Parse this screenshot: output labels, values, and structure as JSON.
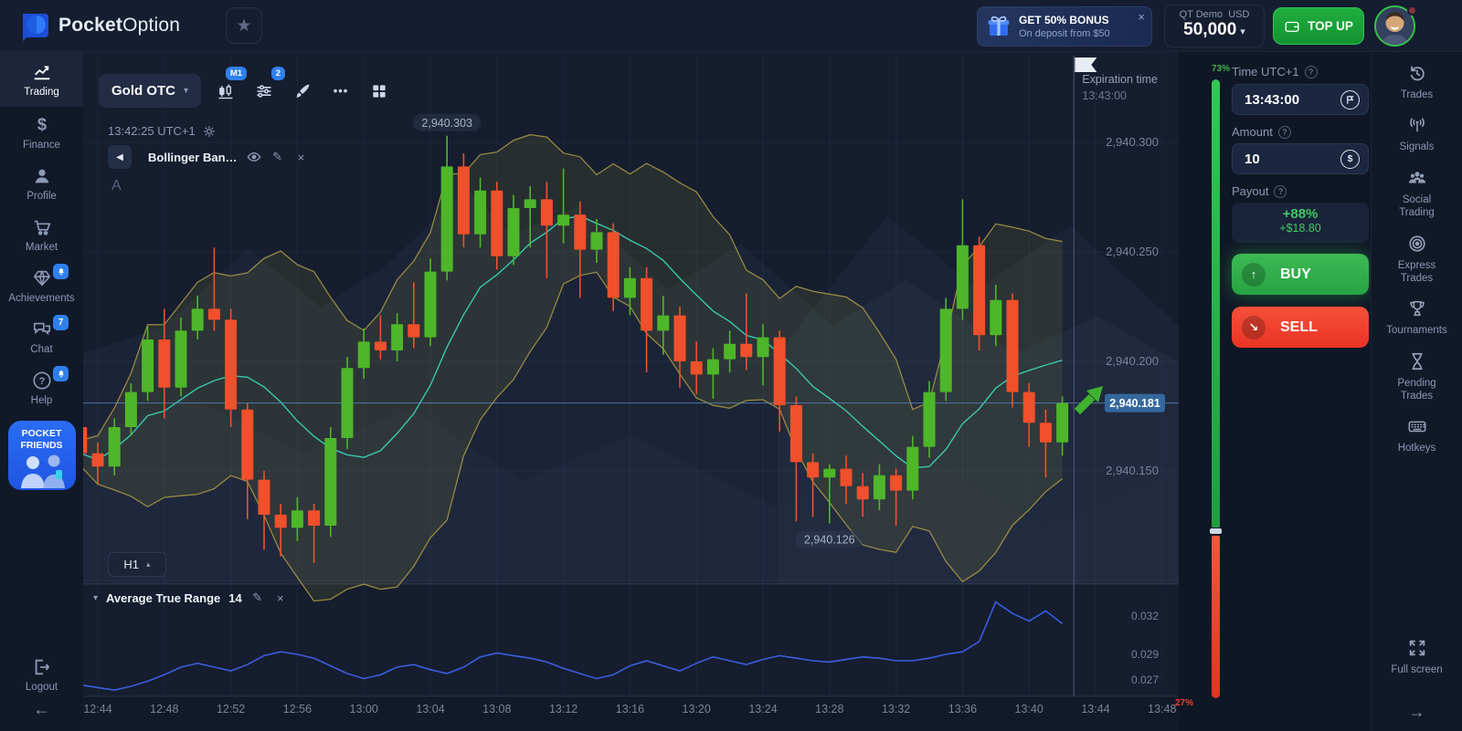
{
  "header": {
    "brand_bold": "Pocket",
    "brand_light": "Option",
    "star_glyph": "★",
    "bonus": {
      "title": "GET 50% BONUS",
      "subtitle": "On deposit from $50",
      "close": "×"
    },
    "account": {
      "type": "QT Demo",
      "currency": "USD",
      "balance": "50,000",
      "caret": "▾"
    },
    "topup_label": "TOP UP"
  },
  "sidebar": {
    "items": [
      {
        "label": "Trading",
        "icon": "chart",
        "active": true
      },
      {
        "label": "Finance",
        "icon": "dollar"
      },
      {
        "label": "Profile",
        "icon": "user"
      },
      {
        "label": "Market",
        "icon": "cart"
      },
      {
        "label": "Achievements",
        "icon": "gem",
        "badge": "bell"
      },
      {
        "label": "Chat",
        "icon": "chat",
        "badge": "7"
      },
      {
        "label": "Help",
        "icon": "question",
        "badge": "bell"
      }
    ],
    "banner": {
      "line1": "POCKET",
      "line2": "FRIENDS"
    },
    "logout_label": "Logout",
    "back_glyph": "←"
  },
  "toolbar": {
    "symbol": "Gold OTC",
    "symbol_caret": "▾",
    "timeframe_badge": "M1",
    "indicators_badge": "2",
    "dots_glyph": "•••",
    "clock": "13:42:25 UTC+1",
    "chip_back_glyph": "◀",
    "indicator_chip": "Bollinger Ban…",
    "pencil_glyph": "✎",
    "close_glyph": "×",
    "annotation_letter": "A",
    "interval_button": "H1",
    "caret_up": "▴",
    "caret_down": "▾"
  },
  "atr_header": {
    "caret": "▾",
    "title": "Average True Range",
    "period": "14",
    "pencil_glyph": "✎",
    "close_glyph": "×"
  },
  "sentiment": {
    "up": "73%",
    "down": "27%"
  },
  "trade_panel": {
    "help_glyph": "?",
    "time_label": "Time UTC+1",
    "time_value": "13:43:00",
    "amount_label": "Amount",
    "amount_value": "10",
    "amount_icon_glyph": "$",
    "payout_label": "Payout",
    "payout_percent": "+88%",
    "payout_amount": "+$18.80",
    "buy_label": "BUY",
    "buy_arrow": "↑",
    "sell_label": "SELL",
    "sell_arrow": "↘"
  },
  "right_rail": {
    "items": [
      {
        "label": "Trades",
        "icon": "trades"
      },
      {
        "label": "Signals",
        "icon": "signals"
      },
      {
        "label": "Social Trading",
        "icon": "social"
      },
      {
        "label": "Express Trades",
        "icon": "express"
      },
      {
        "label": "Tournaments",
        "icon": "tournaments"
      },
      {
        "label": "Pending Trades",
        "icon": "pending"
      },
      {
        "label": "Hotkeys",
        "icon": "hotkeys"
      }
    ],
    "fullscreen_label": "Full screen",
    "arrow_glyph": "→"
  },
  "chart_data": [
    {
      "type": "candlestick",
      "symbol": "Gold OTC",
      "timeframe": "M1",
      "overlay": "Bollinger Bands",
      "y_ticks": [
        {
          "label": "2,940.300",
          "price": 2940.3
        },
        {
          "label": "2,940.250",
          "price": 2940.25
        },
        {
          "label": "2,940.200",
          "price": 2940.2
        },
        {
          "label": "2,940.150",
          "price": 2940.15
        }
      ],
      "x_ticks": [
        "12:44",
        "12:48",
        "12:52",
        "12:56",
        "13:00",
        "13:04",
        "13:08",
        "13:12",
        "13:16",
        "13:20",
        "13:24",
        "13:28",
        "13:32",
        "13:36",
        "13:40",
        "13:44",
        "13:48"
      ],
      "annotations": {
        "high": {
          "label": "2,940.303",
          "index": 22
        },
        "low": {
          "label": "2,940.126",
          "index": 45
        },
        "current": {
          "label": "2,940.181",
          "price": 2940.181
        },
        "expiration": {
          "title": "Expiration time",
          "time": "13:43:00",
          "minute": 59.7
        }
      },
      "colors": {
        "up": "#4eb629",
        "down": "#f0502b",
        "band": "#a89b45",
        "mid": "#38d9b9",
        "price_line": "#5d8cc4",
        "badge": "#34679d",
        "arrow": "#3fb12f"
      },
      "candles": [
        [
          "12:43",
          2940.17,
          2940.176,
          2940.15,
          2940.158
        ],
        [
          "12:44",
          2940.158,
          2940.163,
          2940.144,
          2940.152
        ],
        [
          "12:45",
          2940.152,
          2940.174,
          2940.148,
          2940.17
        ],
        [
          "12:46",
          2940.17,
          2940.19,
          2940.166,
          2940.186
        ],
        [
          "12:47",
          2940.186,
          2940.216,
          2940.182,
          2940.21
        ],
        [
          "12:48",
          2940.21,
          2940.224,
          2940.174,
          2940.188
        ],
        [
          "12:49",
          2940.188,
          2940.22,
          2940.184,
          2940.214
        ],
        [
          "12:50",
          2940.214,
          2940.23,
          2940.21,
          2940.224
        ],
        [
          "12:51",
          2940.224,
          2940.252,
          2940.214,
          2940.219
        ],
        [
          "12:52",
          2940.219,
          2940.224,
          2940.17,
          2940.178
        ],
        [
          "12:53",
          2940.178,
          2940.181,
          2940.128,
          2940.146
        ],
        [
          "12:54",
          2940.146,
          2940.15,
          2940.114,
          2940.13
        ],
        [
          "12:55",
          2940.13,
          2940.135,
          2940.111,
          2940.124
        ],
        [
          "12:56",
          2940.124,
          2940.138,
          2940.118,
          2940.132
        ],
        [
          "12:57",
          2940.132,
          2940.135,
          2940.108,
          2940.125
        ],
        [
          "12:58",
          2940.125,
          2940.17,
          2940.12,
          2940.165
        ],
        [
          "12:59",
          2940.165,
          2940.202,
          2940.16,
          2940.197
        ],
        [
          "13:00",
          2940.197,
          2940.215,
          2940.192,
          2940.209
        ],
        [
          "13:01",
          2940.209,
          2940.221,
          2940.201,
          2940.205
        ],
        [
          "13:02",
          2940.205,
          2940.222,
          2940.2,
          2940.217
        ],
        [
          "13:03",
          2940.217,
          2940.236,
          2940.206,
          2940.211
        ],
        [
          "13:04",
          2940.211,
          2940.247,
          2940.207,
          2940.241
        ],
        [
          "13:05",
          2940.241,
          2940.303,
          2940.237,
          2940.289
        ],
        [
          "13:06",
          2940.289,
          2940.295,
          2940.252,
          2940.258
        ],
        [
          "13:07",
          2940.258,
          2940.284,
          2940.252,
          2940.278
        ],
        [
          "13:08",
          2940.278,
          2940.282,
          2940.242,
          2940.248
        ],
        [
          "13:09",
          2940.248,
          2940.276,
          2940.244,
          2940.27
        ],
        [
          "13:10",
          2940.27,
          2940.28,
          2940.252,
          2940.274
        ],
        [
          "13:11",
          2940.274,
          2940.282,
          2940.238,
          2940.262
        ],
        [
          "13:12",
          2940.262,
          2940.288,
          2940.254,
          2940.267
        ],
        [
          "13:13",
          2940.267,
          2940.273,
          2940.229,
          2940.251
        ],
        [
          "13:14",
          2940.251,
          2940.265,
          2940.245,
          2940.259
        ],
        [
          "13:15",
          2940.259,
          2940.263,
          2940.223,
          2940.229
        ],
        [
          "13:16",
          2940.229,
          2940.243,
          2940.221,
          2940.238
        ],
        [
          "13:17",
          2940.238,
          2940.243,
          2940.195,
          2940.214
        ],
        [
          "13:18",
          2940.214,
          2940.23,
          2940.203,
          2940.221
        ],
        [
          "13:19",
          2940.221,
          2940.225,
          2940.188,
          2940.2
        ],
        [
          "13:20",
          2940.2,
          2940.209,
          2940.185,
          2940.194
        ],
        [
          "13:21",
          2940.194,
          2940.206,
          2940.183,
          2940.201
        ],
        [
          "13:22",
          2940.201,
          2940.214,
          2940.195,
          2940.208
        ],
        [
          "13:23",
          2940.208,
          2940.231,
          2940.196,
          2940.202
        ],
        [
          "13:24",
          2940.202,
          2940.217,
          2940.189,
          2940.211
        ],
        [
          "13:25",
          2940.211,
          2940.214,
          2940.168,
          2940.18
        ],
        [
          "13:26",
          2940.18,
          2940.184,
          2940.127,
          2940.154
        ],
        [
          "13:27",
          2940.154,
          2940.158,
          2940.129,
          2940.147
        ],
        [
          "13:28",
          2940.147,
          2940.153,
          2940.126,
          2940.151
        ],
        [
          "13:29",
          2940.151,
          2940.157,
          2940.135,
          2940.143
        ],
        [
          "13:30",
          2940.143,
          2940.149,
          2940.129,
          2940.137
        ],
        [
          "13:31",
          2940.137,
          2940.153,
          2940.132,
          2940.148
        ],
        [
          "13:32",
          2940.148,
          2940.151,
          2940.125,
          2940.141
        ],
        [
          "13:33",
          2940.141,
          2940.166,
          2940.137,
          2940.161
        ],
        [
          "13:34",
          2940.161,
          2940.191,
          2940.156,
          2940.186
        ],
        [
          "13:35",
          2940.186,
          2940.229,
          2940.182,
          2940.224
        ],
        [
          "13:36",
          2940.224,
          2940.274,
          2940.219,
          2940.253
        ],
        [
          "13:37",
          2940.253,
          2940.257,
          2940.205,
          2940.212
        ],
        [
          "13:38",
          2940.212,
          2940.235,
          2940.207,
          2940.228
        ],
        [
          "13:39",
          2940.228,
          2940.231,
          2940.179,
          2940.186
        ],
        [
          "13:40",
          2940.186,
          2940.19,
          2940.161,
          2940.172
        ],
        [
          "13:41",
          2940.172,
          2940.178,
          2940.147,
          2940.163
        ],
        [
          "13:42",
          2940.163,
          2940.184,
          2940.157,
          2940.181
        ]
      ]
    },
    {
      "type": "line",
      "name": "Average True Range",
      "period": "14",
      "color": "#3a5ede",
      "y_ticks": [
        {
          "label": "0.032",
          "value": 0.032
        },
        {
          "label": "0.029",
          "value": 0.029
        },
        {
          "label": "0.027",
          "value": 0.027
        }
      ],
      "values": [
        0.0266,
        0.0264,
        0.0262,
        0.0265,
        0.0269,
        0.0274,
        0.028,
        0.0283,
        0.028,
        0.0277,
        0.0282,
        0.0289,
        0.0292,
        0.029,
        0.0287,
        0.0281,
        0.0275,
        0.0271,
        0.0274,
        0.028,
        0.0282,
        0.0278,
        0.0275,
        0.028,
        0.0288,
        0.0291,
        0.0289,
        0.0287,
        0.0284,
        0.0279,
        0.0275,
        0.0271,
        0.0274,
        0.0281,
        0.0285,
        0.0281,
        0.0277,
        0.0283,
        0.0288,
        0.0285,
        0.0282,
        0.0286,
        0.0289,
        0.0287,
        0.0285,
        0.0284,
        0.0286,
        0.0288,
        0.0287,
        0.0285,
        0.0285,
        0.0287,
        0.029,
        0.0292,
        0.03,
        0.0331,
        0.0322,
        0.0316,
        0.0324,
        0.0314
      ]
    }
  ]
}
